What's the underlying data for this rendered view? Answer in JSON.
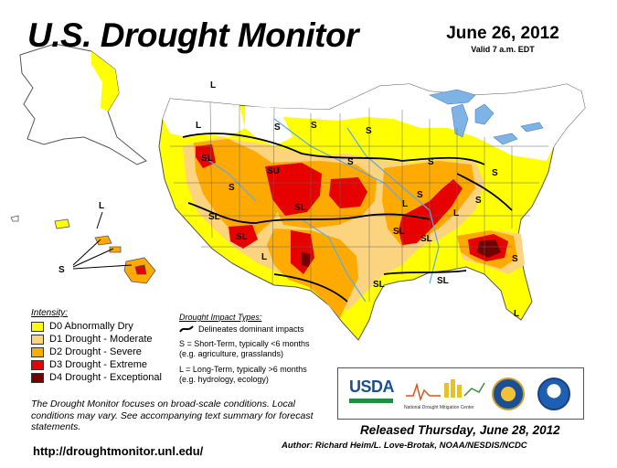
{
  "title": "U.S. Drought Monitor",
  "date": "June 26, 2012",
  "valid": "Valid 7 a.m. EDT",
  "colors": {
    "d0": "#ffff00",
    "d1": "#fcd37f",
    "d2": "#ffaa00",
    "d3": "#e60000",
    "d4": "#730000",
    "water": "#7fb3e6",
    "boundary": "#000000"
  },
  "legend": {
    "title": "Intensity:",
    "items": [
      {
        "label": "D0 Abnormally Dry",
        "color": "#ffff00"
      },
      {
        "label": "D1 Drought - Moderate",
        "color": "#fcd37f"
      },
      {
        "label": "D2 Drought - Severe",
        "color": "#ffaa00"
      },
      {
        "label": "D3 Drought - Extreme",
        "color": "#e60000"
      },
      {
        "label": "D4 Drought - Exceptional",
        "color": "#730000"
      }
    ]
  },
  "impact": {
    "title": "Drought Impact Types:",
    "delineates": "Delineates dominant impacts",
    "short_line1": "S = Short-Term, typically <6 months",
    "short_line2": "(e.g. agriculture, grasslands)",
    "long_line1": "L = Long-Term, typically >6 months",
    "long_line2": "(e.g. hydrology, ecology)"
  },
  "logos": {
    "usda": "USDA",
    "ndmc": "National Drought Mitigation Center"
  },
  "note": "The Drought Monitor focuses on broad-scale conditions. Local conditions may vary. See accompanying text summary for forecast statements.",
  "url": "http://droughtmonitor.unl.edu/",
  "released": "Released Thursday, June 28, 2012",
  "author": "Author: Richard Heim/L. Love-Brotak, NOAA/NESDIS/NCDC",
  "map_labels": {
    "sl": "SL",
    "su": "SU",
    "s": "S",
    "l": "L"
  }
}
